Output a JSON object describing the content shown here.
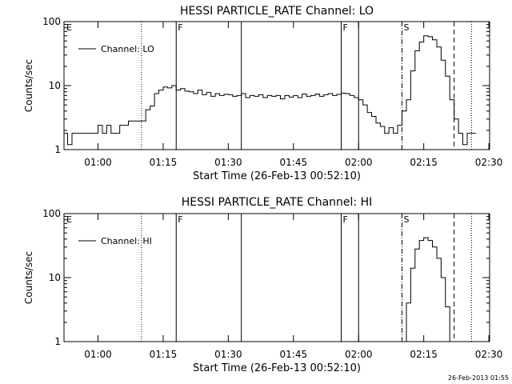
{
  "chart_data": [
    {
      "type": "line",
      "title": "HESSI PARTICLE_RATE Channel: LO",
      "xlabel": "Start Time (26-Feb-13 00:52:10)",
      "ylabel": "Counts/sec",
      "yscale": "log",
      "ylim": [
        1,
        100
      ],
      "xlim_minutes_after_0052": [
        0,
        98
      ],
      "x_ticks": [
        "01:00",
        "01:15",
        "01:30",
        "01:45",
        "02:00",
        "02:15",
        "02:30"
      ],
      "y_ticks": [
        "1",
        "10",
        "100"
      ],
      "legend": {
        "label": "Channel: LO",
        "placement": "top-left"
      },
      "markers": [
        {
          "time": "01:10",
          "style": "dotted",
          "label": ""
        },
        {
          "time": "01:18",
          "style": "solid",
          "label": "F"
        },
        {
          "time": "01:33",
          "style": "solid",
          "label": ""
        },
        {
          "time": "01:56",
          "style": "solid",
          "label": "F"
        },
        {
          "time": "02:00",
          "style": "solid",
          "label": ""
        },
        {
          "time": "02:10",
          "style": "dashdot",
          "label": "S"
        },
        {
          "time": "02:22",
          "style": "dashed",
          "label": ""
        },
        {
          "time": "02:26",
          "style": "dotted",
          "label": ""
        }
      ],
      "edge_label": "E",
      "series": [
        {
          "x": [
            "00:52",
            "00:53",
            "00:54",
            "00:55",
            "00:56",
            "00:57",
            "00:58",
            "00:59",
            "01:00",
            "01:01",
            "01:02",
            "01:03",
            "01:04",
            "01:05",
            "01:06",
            "01:07",
            "01:08",
            "01:09",
            "01:10",
            "01:11",
            "01:12",
            "01:13",
            "01:14",
            "01:15",
            "01:16",
            "01:17",
            "01:18",
            "01:19",
            "01:20",
            "01:21",
            "01:22",
            "01:23",
            "01:24",
            "01:25",
            "01:26",
            "01:27",
            "01:28",
            "01:29",
            "01:30",
            "01:31",
            "01:32",
            "01:33",
            "01:34",
            "01:35",
            "01:36",
            "01:37",
            "01:38",
            "01:39",
            "01:40",
            "01:41",
            "01:42",
            "01:43",
            "01:44",
            "01:45",
            "01:46",
            "01:47",
            "01:48",
            "01:49",
            "01:50",
            "01:51",
            "01:52",
            "01:53",
            "01:54",
            "01:55",
            "01:56",
            "01:57",
            "01:58",
            "01:59",
            "02:00",
            "02:01",
            "02:02",
            "02:03",
            "02:04",
            "02:05",
            "02:06",
            "02:07",
            "02:08",
            "02:09",
            "02:10",
            "02:11",
            "02:12",
            "02:13",
            "02:14",
            "02:15",
            "02:16",
            "02:17",
            "02:18",
            "02:19",
            "02:20",
            "02:21",
            "02:22",
            "02:23",
            "02:24",
            "02:25",
            "02:26"
          ],
          "y": [
            1.8,
            1.2,
            1.8,
            1.8,
            1.8,
            1.8,
            1.8,
            1.8,
            2.4,
            1.8,
            2.4,
            1.8,
            1.8,
            2.4,
            2.4,
            2.8,
            2.8,
            2.8,
            2.8,
            4.2,
            4.8,
            7.5,
            8.5,
            9.5,
            9.2,
            10,
            8.5,
            9,
            8.2,
            8,
            7.5,
            8.5,
            7.2,
            7.8,
            6.8,
            7.5,
            7,
            7.3,
            7.2,
            6.8,
            7,
            7.5,
            6.5,
            7,
            6.8,
            7.2,
            6.5,
            7,
            6.8,
            7,
            6.2,
            7,
            6.6,
            7,
            6.5,
            7.4,
            6.8,
            7,
            7.4,
            6.8,
            7.2,
            7.5,
            7,
            7.3,
            7.6,
            7.5,
            7,
            6.5,
            6,
            5,
            3.8,
            3.3,
            2.6,
            2.3,
            1.8,
            2.2,
            1.8,
            2.4,
            4,
            6,
            17,
            35,
            48,
            60,
            58,
            52,
            40,
            25,
            14,
            6,
            3,
            1.8,
            1.2,
            1.8,
            1.8
          ]
        }
      ]
    },
    {
      "type": "line",
      "title": "HESSI PARTICLE_RATE Channel: HI",
      "xlabel": "Start Time (26-Feb-13 00:52:10)",
      "ylabel": "Counts/sec",
      "yscale": "log",
      "ylim": [
        1,
        100
      ],
      "xlim_minutes_after_0052": [
        0,
        98
      ],
      "x_ticks": [
        "01:00",
        "01:15",
        "01:30",
        "01:45",
        "02:00",
        "02:15",
        "02:30"
      ],
      "y_ticks": [
        "1",
        "10",
        "100"
      ],
      "legend": {
        "label": "Channel: HI",
        "placement": "top-left"
      },
      "markers": [
        {
          "time": "01:10",
          "style": "dotted",
          "label": ""
        },
        {
          "time": "01:18",
          "style": "solid",
          "label": "F"
        },
        {
          "time": "01:33",
          "style": "solid",
          "label": ""
        },
        {
          "time": "01:56",
          "style": "solid",
          "label": "F"
        },
        {
          "time": "02:00",
          "style": "solid",
          "label": ""
        },
        {
          "time": "02:10",
          "style": "dashdot",
          "label": "S"
        },
        {
          "time": "02:22",
          "style": "dashed",
          "label": ""
        },
        {
          "time": "02:26",
          "style": "dotted",
          "label": ""
        }
      ],
      "edge_label": "E",
      "series": [
        {
          "x": [
            "02:10",
            "02:11",
            "02:12",
            "02:13",
            "02:14",
            "02:15",
            "02:16",
            "02:17",
            "02:18",
            "02:19",
            "02:20",
            "02:21"
          ],
          "y": [
            1.0,
            4,
            14,
            28,
            38,
            42,
            38,
            30,
            20,
            10,
            3.5,
            1.0
          ]
        }
      ]
    }
  ],
  "footer": {
    "timestamp": "26-Feb-2013 01:55"
  }
}
